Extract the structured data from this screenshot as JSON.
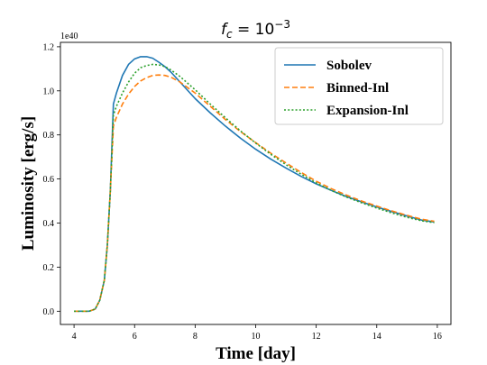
{
  "chart_data": {
    "type": "line",
    "title": "f_c = 10^-3",
    "title_display": {
      "base": "f",
      "sub": "c",
      "eq": " = 10",
      "sup": "−3"
    },
    "xlabel": "Time [day]",
    "ylabel": "Luminosity [erg/s]",
    "y_offset_text": "1e40",
    "xlim": [
      3.55,
      16.45
    ],
    "ylim": [
      -0.06,
      1.22
    ],
    "xticks": [
      4,
      6,
      8,
      10,
      12,
      14,
      16
    ],
    "yticks": [
      0.0,
      0.2,
      0.4,
      0.6,
      0.8,
      1.0,
      1.2
    ],
    "ytick_labels": [
      "0.0",
      "0.2",
      "0.4",
      "0.6",
      "0.8",
      "1.0",
      "1.2"
    ],
    "grid": false,
    "legend_position": "top-right",
    "series": [
      {
        "name": "Sobolev",
        "color": "#1f77b4",
        "dash": "solid",
        "x": [
          4.0,
          4.5,
          4.7,
          4.85,
          5.0,
          5.1,
          5.2,
          5.3,
          5.4,
          5.5,
          5.6,
          5.8,
          6.0,
          6.2,
          6.4,
          6.6,
          6.8,
          7.0,
          7.2,
          7.5,
          8.0,
          8.5,
          9.0,
          9.5,
          10.0,
          10.5,
          11.0,
          11.5,
          12.0,
          12.5,
          13.0,
          13.5,
          14.0,
          14.5,
          15.0,
          15.5,
          15.9
        ],
        "y": [
          0.0,
          0.0,
          0.01,
          0.05,
          0.14,
          0.3,
          0.55,
          0.94,
          0.99,
          1.03,
          1.07,
          1.12,
          1.145,
          1.155,
          1.155,
          1.148,
          1.13,
          1.11,
          1.085,
          1.04,
          0.965,
          0.9,
          0.84,
          0.785,
          0.735,
          0.69,
          0.65,
          0.612,
          0.578,
          0.548,
          0.52,
          0.496,
          0.473,
          0.452,
          0.432,
          0.413,
          0.405
        ]
      },
      {
        "name": "Binned-Inl",
        "color": "#ff7f0e",
        "dash": "dashed",
        "x": [
          4.0,
          4.5,
          4.7,
          4.85,
          5.0,
          5.1,
          5.2,
          5.3,
          5.4,
          5.5,
          5.6,
          5.8,
          6.0,
          6.2,
          6.4,
          6.6,
          6.8,
          7.0,
          7.2,
          7.5,
          8.0,
          8.5,
          9.0,
          9.5,
          10.0,
          10.5,
          11.0,
          11.5,
          12.0,
          12.5,
          13.0,
          13.5,
          14.0,
          14.5,
          15.0,
          15.5,
          15.9
        ],
        "y": [
          0.0,
          0.0,
          0.01,
          0.05,
          0.14,
          0.3,
          0.55,
          0.84,
          0.88,
          0.91,
          0.94,
          0.985,
          1.02,
          1.045,
          1.06,
          1.07,
          1.072,
          1.07,
          1.062,
          1.04,
          0.99,
          0.93,
          0.87,
          0.815,
          0.765,
          0.717,
          0.673,
          0.63,
          0.59,
          0.556,
          0.527,
          0.5,
          0.477,
          0.455,
          0.435,
          0.417,
          0.408
        ]
      },
      {
        "name": "Expansion-Inl",
        "color": "#2ca02c",
        "dash": "dotted",
        "x": [
          4.0,
          4.5,
          4.7,
          4.85,
          5.0,
          5.1,
          5.2,
          5.3,
          5.4,
          5.5,
          5.6,
          5.8,
          6.0,
          6.2,
          6.4,
          6.6,
          6.8,
          7.0,
          7.2,
          7.5,
          8.0,
          8.5,
          9.0,
          9.5,
          10.0,
          10.5,
          11.0,
          11.5,
          12.0,
          12.5,
          13.0,
          13.5,
          14.0,
          14.5,
          15.0,
          15.5,
          15.9
        ],
        "y": [
          0.0,
          0.0,
          0.01,
          0.05,
          0.14,
          0.3,
          0.55,
          0.89,
          0.93,
          0.96,
          0.99,
          1.04,
          1.08,
          1.105,
          1.115,
          1.12,
          1.118,
          1.11,
          1.095,
          1.065,
          1.005,
          0.94,
          0.878,
          0.818,
          0.763,
          0.712,
          0.665,
          0.622,
          0.582,
          0.548,
          0.518,
          0.492,
          0.468,
          0.446,
          0.426,
          0.41,
          0.402
        ]
      }
    ]
  }
}
